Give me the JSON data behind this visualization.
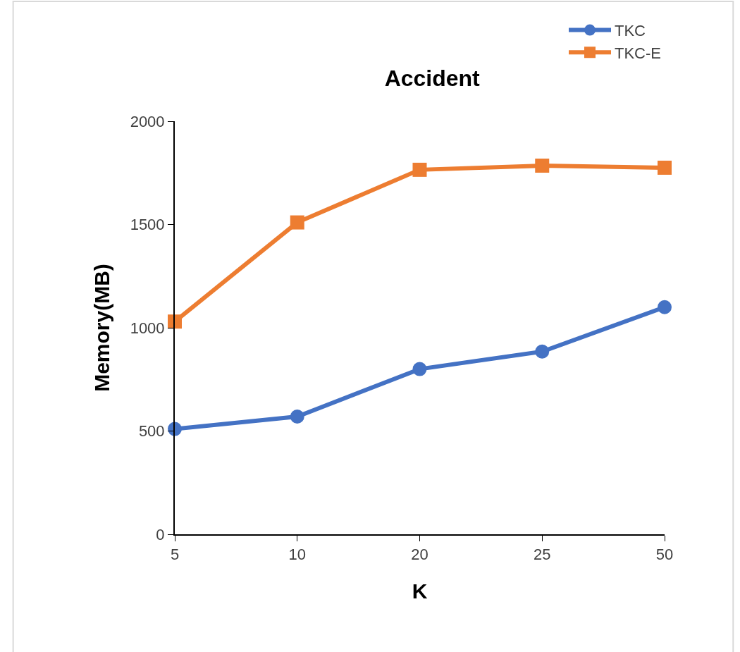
{
  "chart_data": {
    "type": "line",
    "title": "Accident",
    "xlabel": "K",
    "ylabel": "Memory(MB)",
    "categories": [
      "5",
      "10",
      "20",
      "25",
      "50"
    ],
    "series": [
      {
        "name": "TKC",
        "color": "#4472c4",
        "marker": "circle",
        "values": [
          510,
          570,
          800,
          885,
          1100
        ]
      },
      {
        "name": "TKC-E",
        "color": "#ed7d31",
        "marker": "square",
        "values": [
          1030,
          1510,
          1765,
          1785,
          1775
        ]
      }
    ],
    "ylim": [
      0,
      2000
    ],
    "yticks": [
      0,
      500,
      1000,
      1500,
      2000
    ],
    "legend": "top right",
    "line_style": "solid"
  }
}
